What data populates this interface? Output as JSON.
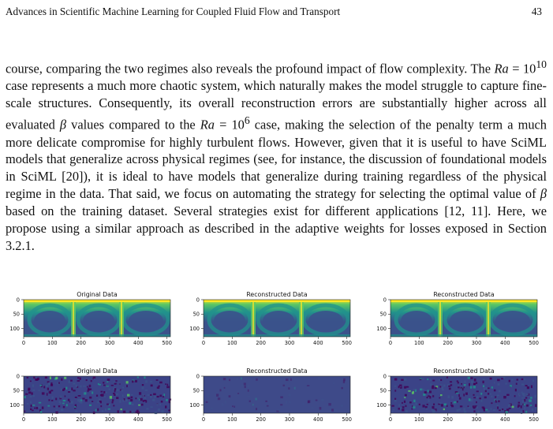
{
  "header": {
    "title": "Advances in Scientific Machine Learning for Coupled Fluid Flow and Transport",
    "page_number": "43"
  },
  "paragraph": {
    "s1": "course, comparing the two regimes also reveals the profound impact of flow complexity. The ",
    "ra": "Ra",
    "eq": " = 10",
    "exp1": "10",
    "s2": " case represents a much more chaotic system, which naturally makes the model struggle to capture fine-scale structures. Consequently, its overall reconstruction errors are substantially higher across all evaluated ",
    "beta": "β",
    "s3": " values compared to the ",
    "exp2": "6",
    "s4": " case, making the selection of the penalty term a much more delicate compromise for highly turbulent flows. However, given that it is useful to have SciML models that generalize across physical regimes (see, for instance, the discussion of foundational models in SciML [20]), it is ideal to have models that generalize during training regardless of the physical regime in the data. That said, we focus on automating the strategy for selecting the optimal value of ",
    "s5": " based on the training dataset. Several strategies exist for different applications [12, 11]. Here, we propose using a similar approach as described in the adaptive weights for losses exposed in Section 3.2.1."
  },
  "figure": {
    "panels": [
      {
        "title": "Original Data",
        "kind": "temperature"
      },
      {
        "title": "Reconstructed Data",
        "kind": "temperature"
      },
      {
        "title": "Reconstructed Data",
        "kind": "temperature"
      },
      {
        "title": "Original Data",
        "kind": "noise"
      },
      {
        "title": "Reconstructed Data",
        "kind": "noise-smooth"
      },
      {
        "title": "Reconstructed Data",
        "kind": "noise"
      }
    ],
    "x_ticks": [
      "0",
      "100",
      "200",
      "300",
      "400",
      "500"
    ],
    "y_ticks": [
      "0",
      "50",
      "100"
    ],
    "colormap": [
      "#440154",
      "#3b528b",
      "#21918c",
      "#5ec962",
      "#fde725"
    ]
  }
}
